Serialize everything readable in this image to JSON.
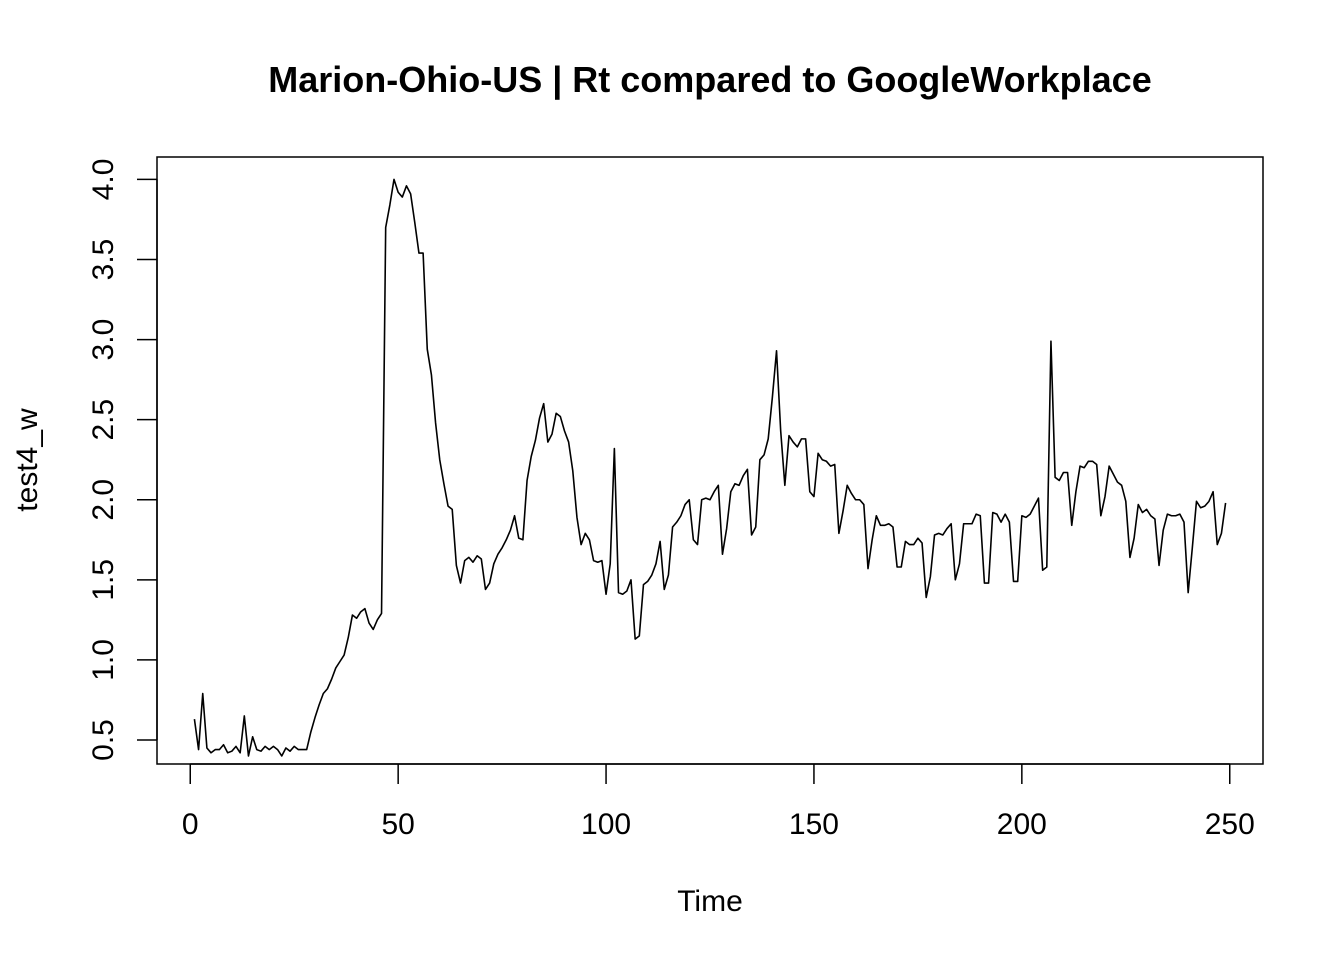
{
  "chart_data": {
    "type": "line",
    "title": "Marion-Ohio-US | Rt compared to GoogleWorkplace",
    "xlabel": "Time",
    "ylabel": "test4_w",
    "xlim": [
      -8,
      258
    ],
    "ylim": [
      0.35,
      4.14
    ],
    "x_ticks": [
      0,
      50,
      100,
      150,
      200,
      250
    ],
    "y_ticks": [
      0.5,
      1.0,
      1.5,
      2.0,
      2.5,
      3.0,
      3.5,
      4.0
    ],
    "x_tick_labels": [
      "0",
      "50",
      "100",
      "150",
      "200",
      "250"
    ],
    "y_tick_labels": [
      "0.5",
      "1.0",
      "1.5",
      "2.0",
      "2.5",
      "3.0",
      "3.5",
      "4.0"
    ],
    "grid": false,
    "line_color": "#000000",
    "series": [
      {
        "points": [
          [
            1,
            0.63
          ],
          [
            2,
            0.44
          ],
          [
            3,
            0.79
          ],
          [
            4,
            0.45
          ],
          [
            5,
            0.42
          ],
          [
            6,
            0.44
          ],
          [
            7,
            0.44
          ],
          [
            8,
            0.47
          ],
          [
            9,
            0.42
          ],
          [
            10,
            0.43
          ],
          [
            11,
            0.46
          ],
          [
            12,
            0.42
          ],
          [
            13,
            0.65
          ],
          [
            14,
            0.4
          ],
          [
            15,
            0.52
          ],
          [
            16,
            0.44
          ],
          [
            17,
            0.43
          ],
          [
            18,
            0.46
          ],
          [
            19,
            0.44
          ],
          [
            20,
            0.46
          ],
          [
            21,
            0.44
          ],
          [
            22,
            0.4
          ],
          [
            23,
            0.45
          ],
          [
            24,
            0.43
          ],
          [
            25,
            0.46
          ],
          [
            26,
            0.44
          ],
          [
            27,
            0.44
          ],
          [
            28,
            0.44
          ],
          [
            29,
            0.55
          ],
          [
            30,
            0.64
          ],
          [
            31,
            0.72
          ],
          [
            32,
            0.79
          ],
          [
            33,
            0.82
          ],
          [
            34,
            0.88
          ],
          [
            35,
            0.95
          ],
          [
            36,
            0.99
          ],
          [
            37,
            1.03
          ],
          [
            38,
            1.14
          ],
          [
            39,
            1.28
          ],
          [
            40,
            1.26
          ],
          [
            41,
            1.3
          ],
          [
            42,
            1.32
          ],
          [
            43,
            1.23
          ],
          [
            44,
            1.19
          ],
          [
            45,
            1.25
          ],
          [
            46,
            1.29
          ],
          [
            47,
            3.7
          ],
          [
            48,
            3.84
          ],
          [
            49,
            4.0
          ],
          [
            50,
            3.92
          ],
          [
            51,
            3.89
          ],
          [
            52,
            3.96
          ],
          [
            53,
            3.91
          ],
          [
            54,
            3.73
          ],
          [
            55,
            3.54
          ],
          [
            56,
            3.54
          ],
          [
            57,
            2.94
          ],
          [
            58,
            2.78
          ],
          [
            59,
            2.48
          ],
          [
            60,
            2.25
          ],
          [
            61,
            2.1
          ],
          [
            62,
            1.96
          ],
          [
            63,
            1.94
          ],
          [
            64,
            1.59
          ],
          [
            65,
            1.48
          ],
          [
            66,
            1.62
          ],
          [
            67,
            1.64
          ],
          [
            68,
            1.61
          ],
          [
            69,
            1.65
          ],
          [
            70,
            1.63
          ],
          [
            71,
            1.44
          ],
          [
            72,
            1.48
          ],
          [
            73,
            1.6
          ],
          [
            74,
            1.66
          ],
          [
            75,
            1.7
          ],
          [
            76,
            1.75
          ],
          [
            77,
            1.81
          ],
          [
            78,
            1.9
          ],
          [
            79,
            1.76
          ],
          [
            80,
            1.75
          ],
          [
            81,
            2.12
          ],
          [
            82,
            2.27
          ],
          [
            83,
            2.37
          ],
          [
            84,
            2.51
          ],
          [
            85,
            2.6
          ],
          [
            86,
            2.36
          ],
          [
            87,
            2.41
          ],
          [
            88,
            2.54
          ],
          [
            89,
            2.52
          ],
          [
            90,
            2.43
          ],
          [
            91,
            2.36
          ],
          [
            92,
            2.18
          ],
          [
            93,
            1.89
          ],
          [
            94,
            1.72
          ],
          [
            95,
            1.79
          ],
          [
            96,
            1.75
          ],
          [
            97,
            1.62
          ],
          [
            98,
            1.61
          ],
          [
            99,
            1.62
          ],
          [
            100,
            1.41
          ],
          [
            101,
            1.6
          ],
          [
            102,
            2.32
          ],
          [
            103,
            1.42
          ],
          [
            104,
            1.41
          ],
          [
            105,
            1.43
          ],
          [
            106,
            1.5
          ],
          [
            107,
            1.13
          ],
          [
            108,
            1.15
          ],
          [
            109,
            1.47
          ],
          [
            110,
            1.49
          ],
          [
            111,
            1.53
          ],
          [
            112,
            1.6
          ],
          [
            113,
            1.74
          ],
          [
            114,
            1.44
          ],
          [
            115,
            1.53
          ],
          [
            116,
            1.83
          ],
          [
            117,
            1.86
          ],
          [
            118,
            1.9
          ],
          [
            119,
            1.97
          ],
          [
            120,
            2.0
          ],
          [
            121,
            1.75
          ],
          [
            122,
            1.72
          ],
          [
            123,
            2.0
          ],
          [
            124,
            2.01
          ],
          [
            125,
            2.0
          ],
          [
            126,
            2.05
          ],
          [
            127,
            2.09
          ],
          [
            128,
            1.66
          ],
          [
            129,
            1.82
          ],
          [
            130,
            2.05
          ],
          [
            131,
            2.1
          ],
          [
            132,
            2.09
          ],
          [
            133,
            2.15
          ],
          [
            134,
            2.19
          ],
          [
            135,
            1.78
          ],
          [
            136,
            1.83
          ],
          [
            137,
            2.25
          ],
          [
            138,
            2.28
          ],
          [
            139,
            2.38
          ],
          [
            140,
            2.64
          ],
          [
            141,
            2.93
          ],
          [
            142,
            2.43
          ],
          [
            143,
            2.09
          ],
          [
            144,
            2.4
          ],
          [
            145,
            2.36
          ],
          [
            146,
            2.33
          ],
          [
            147,
            2.38
          ],
          [
            148,
            2.38
          ],
          [
            149,
            2.05
          ],
          [
            150,
            2.02
          ],
          [
            151,
            2.29
          ],
          [
            152,
            2.25
          ],
          [
            153,
            2.24
          ],
          [
            154,
            2.21
          ],
          [
            155,
            2.22
          ],
          [
            156,
            1.79
          ],
          [
            157,
            1.93
          ],
          [
            158,
            2.09
          ],
          [
            159,
            2.04
          ],
          [
            160,
            2.0
          ],
          [
            161,
            2.0
          ],
          [
            162,
            1.97
          ],
          [
            163,
            1.57
          ],
          [
            164,
            1.75
          ],
          [
            165,
            1.9
          ],
          [
            166,
            1.84
          ],
          [
            167,
            1.84
          ],
          [
            168,
            1.85
          ],
          [
            169,
            1.83
          ],
          [
            170,
            1.58
          ],
          [
            171,
            1.58
          ],
          [
            172,
            1.74
          ],
          [
            173,
            1.72
          ],
          [
            174,
            1.72
          ],
          [
            175,
            1.76
          ],
          [
            176,
            1.73
          ],
          [
            177,
            1.39
          ],
          [
            178,
            1.52
          ],
          [
            179,
            1.78
          ],
          [
            180,
            1.79
          ],
          [
            181,
            1.78
          ],
          [
            182,
            1.82
          ],
          [
            183,
            1.85
          ],
          [
            184,
            1.5
          ],
          [
            185,
            1.6
          ],
          [
            186,
            1.85
          ],
          [
            187,
            1.85
          ],
          [
            188,
            1.85
          ],
          [
            189,
            1.91
          ],
          [
            190,
            1.9
          ],
          [
            191,
            1.48
          ],
          [
            192,
            1.48
          ],
          [
            193,
            1.92
          ],
          [
            194,
            1.91
          ],
          [
            195,
            1.86
          ],
          [
            196,
            1.91
          ],
          [
            197,
            1.86
          ],
          [
            198,
            1.49
          ],
          [
            199,
            1.49
          ],
          [
            200,
            1.9
          ],
          [
            201,
            1.89
          ],
          [
            202,
            1.91
          ],
          [
            203,
            1.96
          ],
          [
            204,
            2.01
          ],
          [
            205,
            1.56
          ],
          [
            206,
            1.58
          ],
          [
            207,
            2.99
          ],
          [
            208,
            2.14
          ],
          [
            209,
            2.12
          ],
          [
            210,
            2.17
          ],
          [
            211,
            2.17
          ],
          [
            212,
            1.84
          ],
          [
            213,
            2.05
          ],
          [
            214,
            2.21
          ],
          [
            215,
            2.2
          ],
          [
            216,
            2.24
          ],
          [
            217,
            2.24
          ],
          [
            218,
            2.22
          ],
          [
            219,
            1.9
          ],
          [
            220,
            2.02
          ],
          [
            221,
            2.21
          ],
          [
            222,
            2.16
          ],
          [
            223,
            2.11
          ],
          [
            224,
            2.09
          ],
          [
            225,
            1.99
          ],
          [
            226,
            1.64
          ],
          [
            227,
            1.76
          ],
          [
            228,
            1.97
          ],
          [
            229,
            1.92
          ],
          [
            230,
            1.94
          ],
          [
            231,
            1.9
          ],
          [
            232,
            1.88
          ],
          [
            233,
            1.59
          ],
          [
            234,
            1.81
          ],
          [
            235,
            1.91
          ],
          [
            236,
            1.9
          ],
          [
            237,
            1.9
          ],
          [
            238,
            1.91
          ],
          [
            239,
            1.86
          ],
          [
            240,
            1.42
          ],
          [
            241,
            1.7
          ],
          [
            242,
            1.99
          ],
          [
            243,
            1.95
          ],
          [
            244,
            1.96
          ],
          [
            245,
            1.99
          ],
          [
            246,
            2.05
          ],
          [
            247,
            1.72
          ],
          [
            248,
            1.79
          ],
          [
            249,
            1.98
          ]
        ]
      }
    ]
  }
}
